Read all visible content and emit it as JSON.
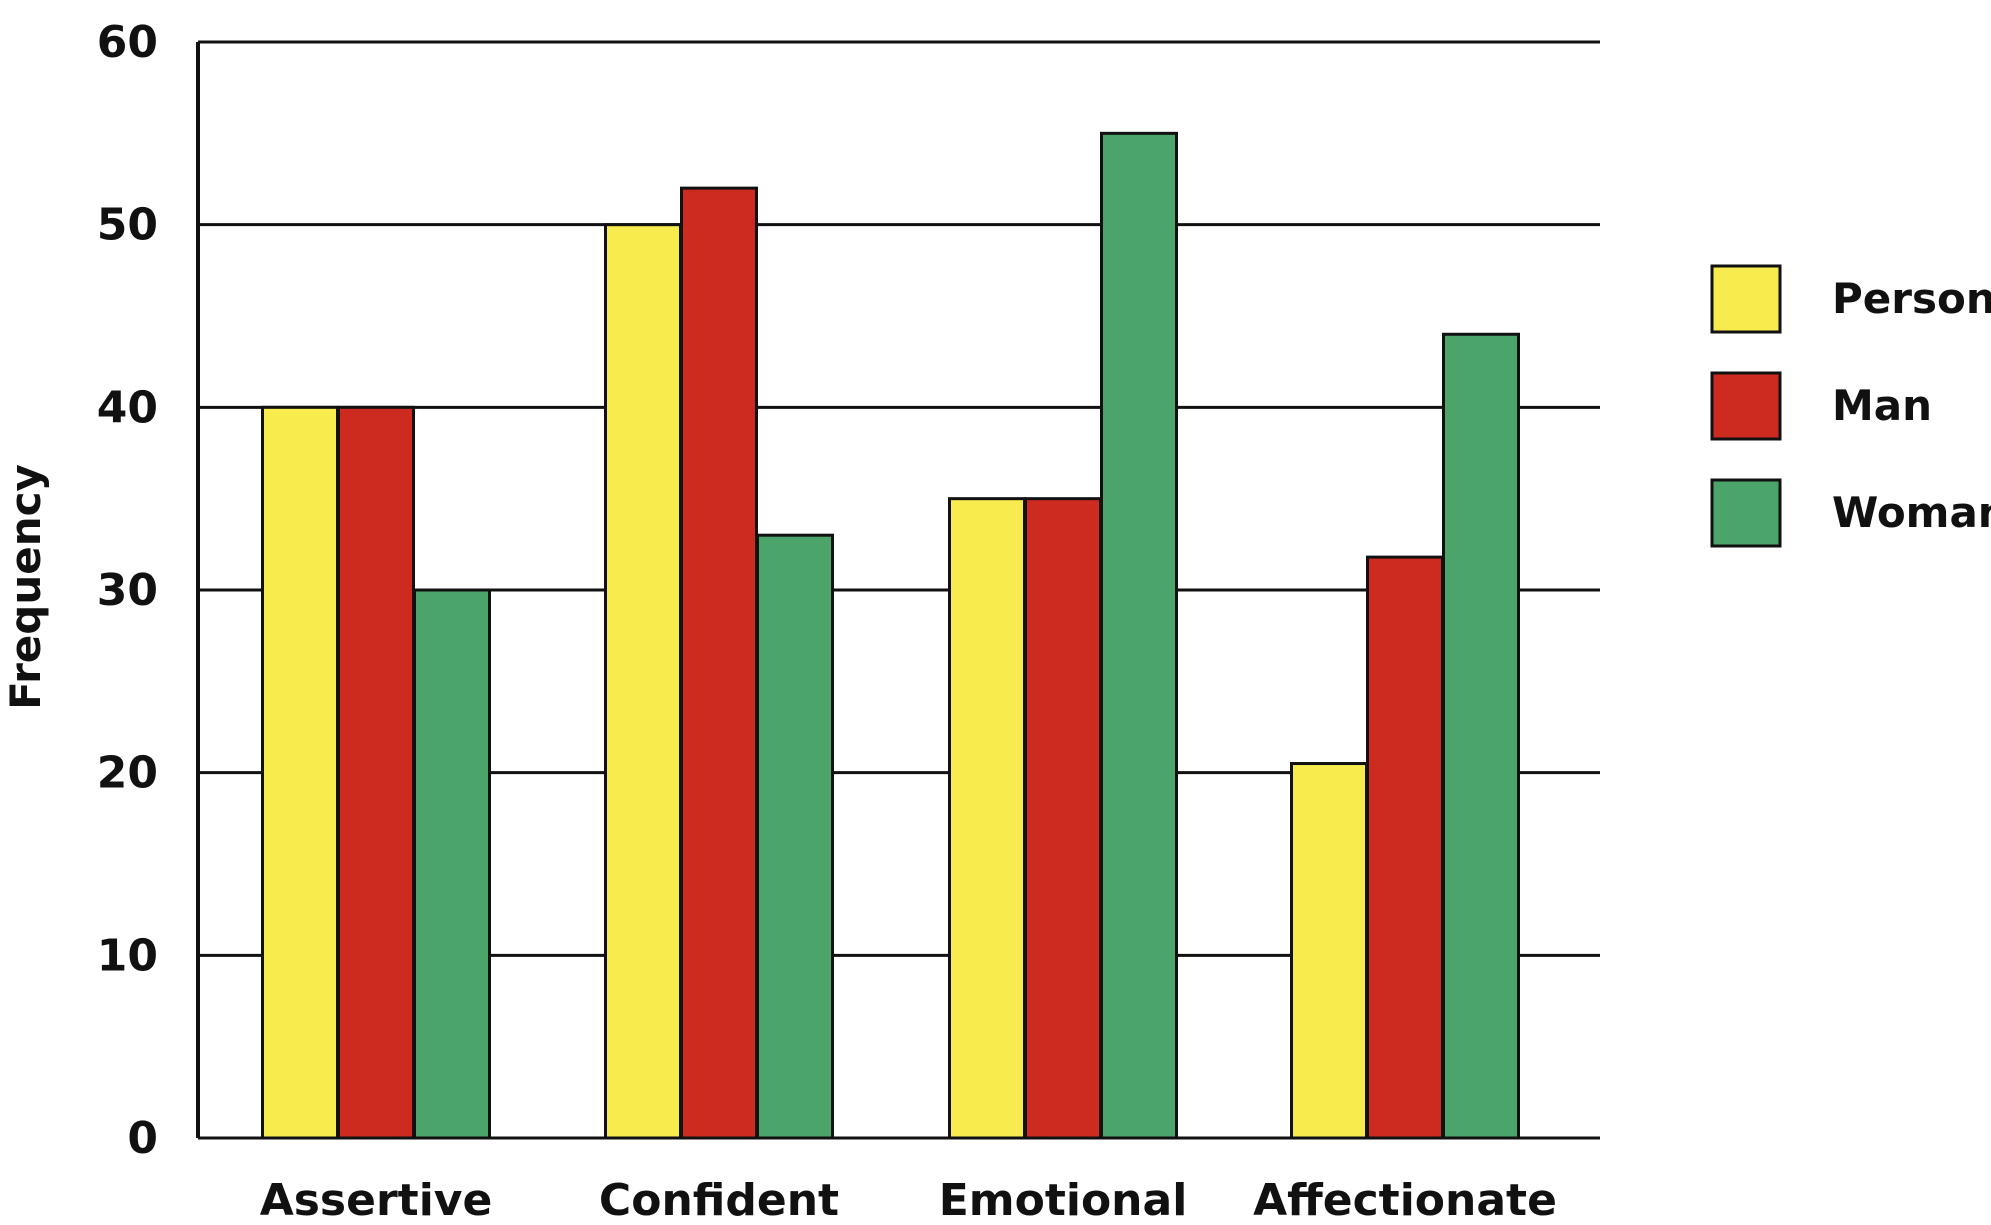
{
  "chart_data": {
    "type": "bar",
    "categories": [
      "Assertive",
      "Confident",
      "Emotional",
      "Affectionate"
    ],
    "series": [
      {
        "name": "Person",
        "values": [
          40,
          50,
          35,
          20.5
        ],
        "color": "#f8eb4e"
      },
      {
        "name": "Man",
        "values": [
          40,
          52,
          35,
          31.8
        ],
        "color": "#ce2b20"
      },
      {
        "name": "Woman",
        "values": [
          30,
          33,
          55,
          44
        ],
        "color": "#4ba56a"
      }
    ],
    "ylabel": "Frequency",
    "xlabel": "",
    "ylim": [
      0,
      60
    ],
    "yticks": [
      0,
      10,
      20,
      30,
      40,
      50,
      60
    ],
    "grid": true,
    "legend_position": "right"
  }
}
